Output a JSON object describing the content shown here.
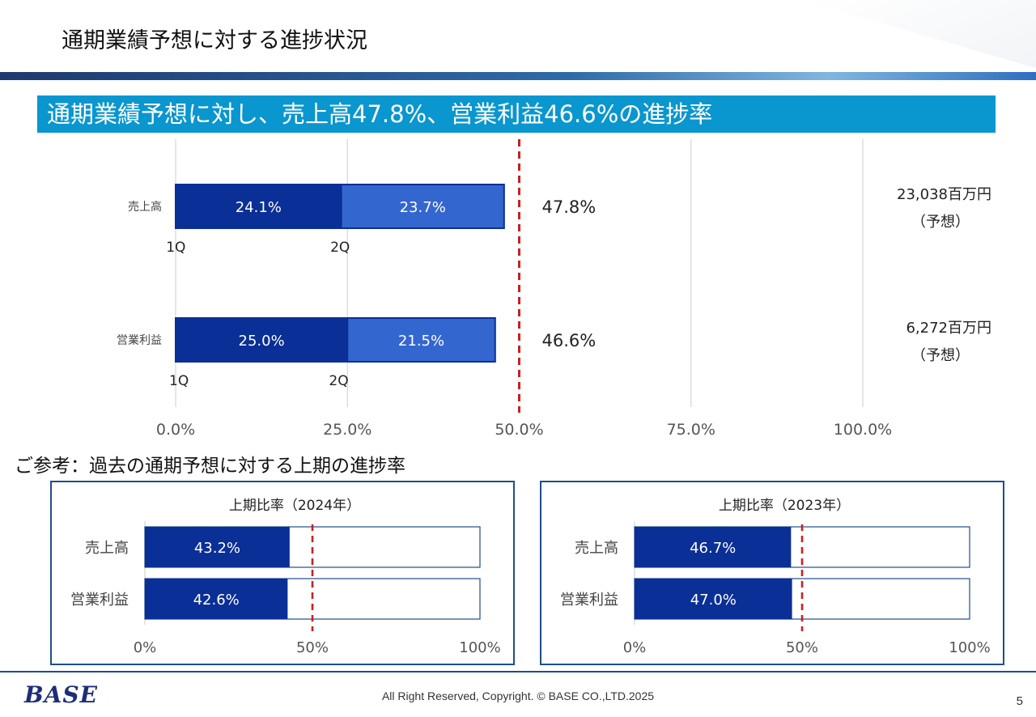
{
  "header": {
    "title": "通期業績予想に対する進捗状況"
  },
  "banner": {
    "text": "通期業績予想に対し、売上高47.8%、営業利益46.6%の進捗率"
  },
  "section": {
    "heading": "ご参考：過去の通期予想に対する上期の進捗率"
  },
  "footer": {
    "logo": "BASE",
    "copyright": "All Right Reserved, Copyright. © BASE CO.,LTD.2025",
    "page_number": "5"
  },
  "colors": {
    "q1": "#0a2f96",
    "q2": "#3466d0",
    "reference_line": "#cc1f1f",
    "grid": "#d9d9d9",
    "panel_border": "#1f4e8c"
  },
  "chart_data": [
    {
      "type": "bar",
      "orientation": "horizontal",
      "stacked": true,
      "categories": [
        "売上高",
        "営業利益"
      ],
      "series": [
        {
          "name": "1Q",
          "values": [
            24.1,
            25.0
          ],
          "labels": [
            "24.1%",
            "25.0%"
          ],
          "segment_labels": [
            "1Q",
            "1Q"
          ]
        },
        {
          "name": "2Q",
          "values": [
            23.7,
            21.5
          ],
          "labels": [
            "23.7%",
            "21.5%"
          ],
          "segment_labels": [
            "2Q",
            "2Q"
          ]
        }
      ],
      "totals": [
        47.8,
        46.6
      ],
      "total_labels": [
        "47.8%",
        "46.6%"
      ],
      "forecasts": [
        {
          "value": "23,038百万円",
          "note": "（予想）"
        },
        {
          "value": "6,272百万円",
          "note": "（予想）"
        }
      ],
      "xlim": [
        0,
        100
      ],
      "xticks": [
        0,
        25,
        50,
        75,
        100
      ],
      "xtick_labels": [
        "0.0%",
        "25.0%",
        "50.0%",
        "75.0%",
        "100.0%"
      ],
      "reference_line": 50,
      "grid": true
    },
    {
      "type": "bar",
      "orientation": "horizontal",
      "title": "上期比率（2024年）",
      "categories": [
        "売上高",
        "営業利益"
      ],
      "values": [
        43.2,
        42.6
      ],
      "labels": [
        "43.2%",
        "42.6%"
      ],
      "xlim": [
        0,
        100
      ],
      "xticks": [
        0,
        50,
        100
      ],
      "xtick_labels": [
        "0%",
        "50%",
        "100%"
      ],
      "reference_line": 50
    },
    {
      "type": "bar",
      "orientation": "horizontal",
      "title": "上期比率（2023年）",
      "categories": [
        "売上高",
        "営業利益"
      ],
      "values": [
        46.7,
        47.0
      ],
      "labels": [
        "46.7%",
        "47.0%"
      ],
      "xlim": [
        0,
        100
      ],
      "xticks": [
        0,
        50,
        100
      ],
      "xtick_labels": [
        "0%",
        "50%",
        "100%"
      ],
      "reference_line": 50
    }
  ]
}
